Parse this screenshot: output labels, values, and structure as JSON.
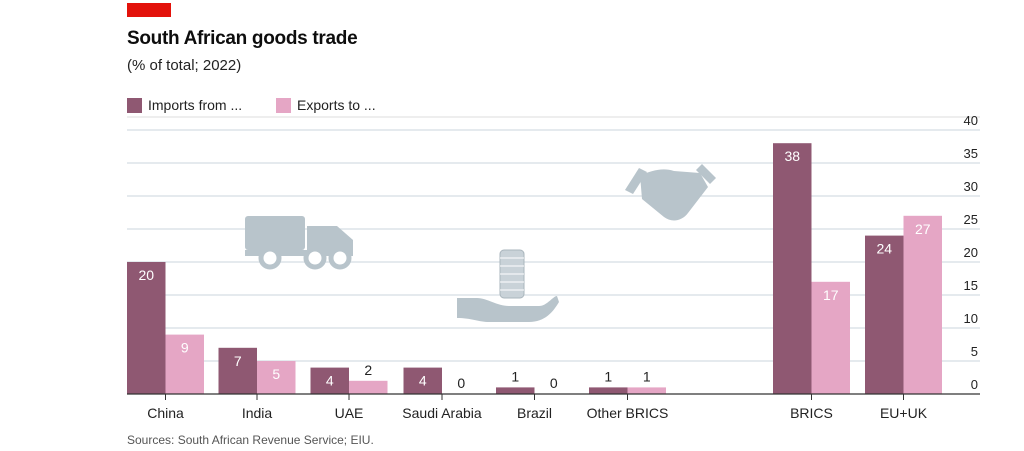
{
  "header": {
    "title": "South African goods trade",
    "subtitle": "(% of total; 2022)"
  },
  "legend": [
    {
      "label": "Imports from ...",
      "color": "#8f5872"
    },
    {
      "label": "Exports to ...",
      "color": "#e5a6c5"
    }
  ],
  "source": "Sources: South African Revenue Service; EIU.",
  "chart_data": {
    "type": "bar",
    "title": "South African goods trade",
    "subtitle": "(% of total; 2022)",
    "categories": [
      "China",
      "India",
      "UAE",
      "Saudi Arabia",
      "Brazil",
      "Other BRICS",
      "BRICS",
      "EU+UK"
    ],
    "series": [
      {
        "name": "Imports from ...",
        "values": [
          20,
          7,
          4,
          4,
          1,
          1,
          38,
          24
        ],
        "color": "#8f5872"
      },
      {
        "name": "Exports to ...",
        "values": [
          9,
          5,
          2,
          0,
          0,
          1,
          17,
          27
        ],
        "color": "#e5a6c5"
      }
    ],
    "ylim": [
      0,
      40
    ],
    "yticks": [
      0,
      5,
      10,
      15,
      20,
      25,
      30,
      35,
      40
    ],
    "yaxis_side": "right",
    "grid": true,
    "legend_position": "top-left",
    "xlabel": "",
    "ylabel": ""
  }
}
